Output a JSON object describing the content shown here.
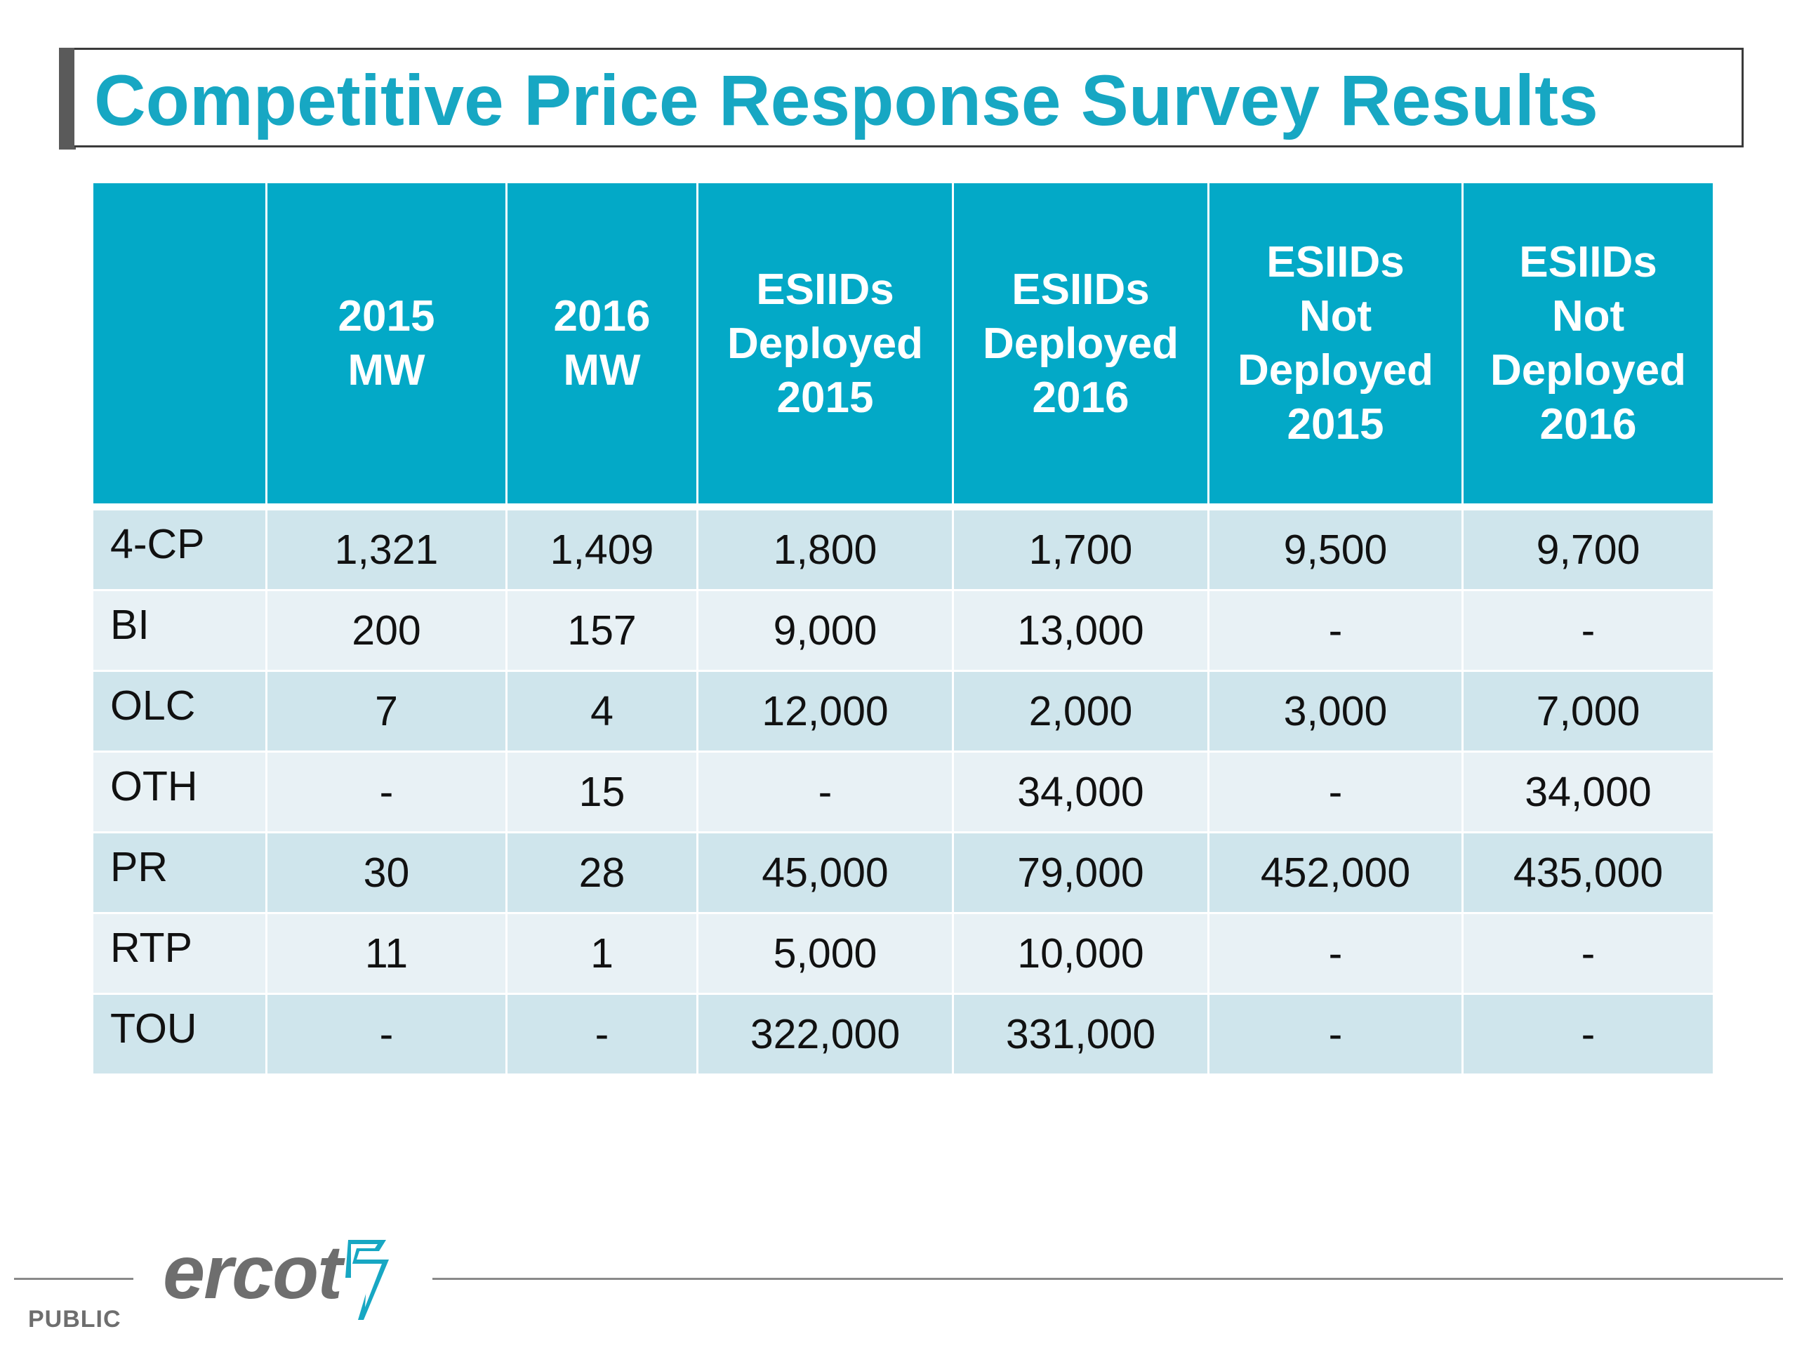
{
  "title": "Competitive Price Response Survey Results",
  "table": {
    "headers": [
      [],
      [
        "2015",
        "MW"
      ],
      [
        "2016",
        "MW"
      ],
      [
        "ESIIDs",
        "Deployed",
        "2015"
      ],
      [
        "ESIIDs",
        "Deployed",
        "2016"
      ],
      [
        "ESIIDs",
        "Not",
        "Deployed",
        "2015"
      ],
      [
        "ESIIDs",
        "Not",
        "Deployed",
        "2016"
      ]
    ],
    "rows": [
      [
        "4-CP",
        "1,321",
        "1,409",
        "1,800",
        "1,700",
        "9,500",
        "9,700"
      ],
      [
        "BI",
        "200",
        "157",
        "9,000",
        "13,000",
        "-",
        "-"
      ],
      [
        "OLC",
        "7",
        "4",
        "12,000",
        "2,000",
        "3,000",
        "7,000"
      ],
      [
        "OTH",
        "-",
        "15",
        "-",
        "34,000",
        "-",
        "34,000"
      ],
      [
        "PR",
        "30",
        "28",
        "45,000",
        "79,000",
        "452,000",
        "435,000"
      ],
      [
        "RTP",
        "11",
        "1",
        "5,000",
        "10,000",
        "-",
        "-"
      ],
      [
        "TOU",
        "-",
        "-",
        "322,000",
        "331,000",
        "-",
        "-"
      ]
    ]
  },
  "footer": {
    "logo_text": "ercot",
    "classification": "PUBLIC"
  },
  "colors": {
    "title": "#17a7c3",
    "header_bg": "#03a9c7",
    "row_odd": "#cfe5ec",
    "row_even": "#e8f1f5"
  },
  "icons": [
    "ercot-logo-icon"
  ]
}
